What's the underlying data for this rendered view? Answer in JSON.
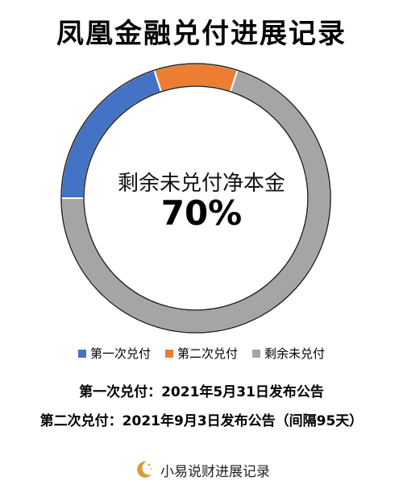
{
  "title": "凤凰金融兑付进展记录",
  "center_label": "剩余未兑付净本金",
  "center_value": "70%",
  "notes": {
    "first": "第一次兑付：2021年5月31日发布公告",
    "second": "第二次兑付：2021年9月3日发布公告（间隔95天）"
  },
  "footer": {
    "brand": "小易说财进展记录"
  },
  "colors": {
    "blue": "#4472C4",
    "orange": "#ED7D31",
    "gray": "#A5A5A5"
  },
  "chart_data": {
    "type": "pie",
    "title": "凤凰金融兑付进展记录",
    "categories": [
      "第一次兑付",
      "第二次兑付",
      "剩余未兑付"
    ],
    "values": [
      20,
      10,
      70
    ],
    "colors": [
      "#4472C4",
      "#ED7D31",
      "#A5A5A5"
    ],
    "donut": true,
    "legend": "bottom"
  }
}
